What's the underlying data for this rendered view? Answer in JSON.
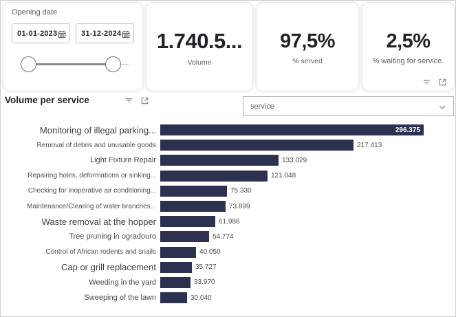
{
  "slicer": {
    "title": "Opening date",
    "start_date": "01-01-2023",
    "end_date": "31-12-2024"
  },
  "kpis": [
    {
      "value": "1.740.5...",
      "label": "Volume"
    },
    {
      "value": "97,5%",
      "label": "% served"
    },
    {
      "value": "2,5%",
      "label": "% waiting for service."
    }
  ],
  "chart": {
    "title": "Volume per service",
    "dropdown_label": "service"
  },
  "icons": {
    "filter": "filter-icon",
    "focus_mode": "focus-mode-icon",
    "calendar": "calendar-icon",
    "chevron_down": "chevron-down-icon"
  },
  "colors": {
    "bar": "#2d3150",
    "kpi_text": "#1f2228",
    "muted_text": "#605e5c"
  },
  "chart_data": {
    "type": "bar",
    "orientation": "horizontal",
    "title": "Volume per service",
    "xlabel": "",
    "ylabel": "",
    "xlim": [
      0,
      300000
    ],
    "grid": false,
    "bar_color": "#2d3150",
    "categories": [
      "Monitoring of illegal parking...",
      "Removal of debris and unusable goods",
      "Light Fixture Repair",
      "Repairing holes, deformations or sinking...",
      "Checking for inoperative air conditioning...",
      "Maintenance/Clearing of water branches...",
      "Waste removal at the hopper",
      "Tree pruning in ogradouro",
      "Control of African rodents and snails",
      "Cap or grill replacement",
      "Weeding in the yard",
      "Sweeping of the lawn"
    ],
    "values": [
      296375,
      217413,
      133029,
      121048,
      75330,
      73899,
      61986,
      54774,
      40050,
      35727,
      33970,
      30040
    ],
    "items": [
      {
        "label": "Monitoring of illegal parking...",
        "value": 296375,
        "value_label": "296.375",
        "label_style": "large",
        "value_inside": true
      },
      {
        "label": "Removal of debris and unusable goods",
        "value": 217413,
        "value_label": "217.413",
        "label_style": "small",
        "value_inside": false
      },
      {
        "label": "Light Fixture Repair",
        "value": 133029,
        "value_label": "133.029",
        "label_style": "medium",
        "value_inside": false
      },
      {
        "label": "Repairing holes, deformations or sinking...",
        "value": 121048,
        "value_label": "121.048",
        "label_style": "small",
        "value_inside": false
      },
      {
        "label": "Checking for inoperative air conditioning...",
        "value": 75330,
        "value_label": "75.330",
        "label_style": "small",
        "value_inside": false
      },
      {
        "label": "Maintenance/Clearing of water branches...",
        "value": 73899,
        "value_label": "73.899",
        "label_style": "small",
        "value_inside": false
      },
      {
        "label": "Waste removal at the hopper",
        "value": 61986,
        "value_label": "61.986",
        "label_style": "large",
        "value_inside": false
      },
      {
        "label": "Tree pruning in ogradouro",
        "value": 54774,
        "value_label": "54.774",
        "label_style": "medium",
        "value_inside": false
      },
      {
        "label": "Control of African rodents and snails",
        "value": 40050,
        "value_label": "40.050",
        "label_style": "small",
        "value_inside": false
      },
      {
        "label": "Cap or grill replacement",
        "value": 35727,
        "value_label": "35.727",
        "label_style": "large",
        "value_inside": false
      },
      {
        "label": "Weeding in the yard",
        "value": 33970,
        "value_label": "33.970",
        "label_style": "medium",
        "value_inside": false
      },
      {
        "label": "Sweeping of the lawn",
        "value": 30040,
        "value_label": "30.040",
        "label_style": "medium",
        "value_inside": false
      }
    ]
  }
}
